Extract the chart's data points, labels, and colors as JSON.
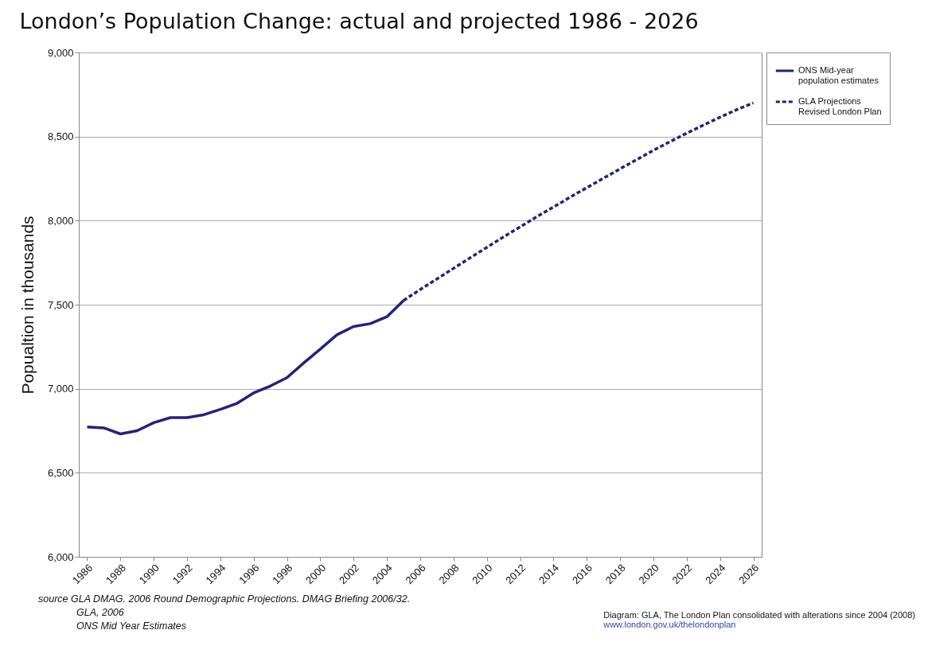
{
  "chart_data": {
    "type": "line",
    "title": "London’s Population Change: actual and projected 1986 - 2026",
    "ylabel": "Popualtion in thousands",
    "xlim": [
      1985.5,
      2026.5
    ],
    "xticks": [
      1986,
      1988,
      1990,
      1992,
      1994,
      1996,
      1998,
      2000,
      2002,
      2004,
      2006,
      2008,
      2010,
      2012,
      2014,
      2016,
      2018,
      2020,
      2022,
      2024,
      2026
    ],
    "ylim": [
      6000,
      9000
    ],
    "yticks": [
      {
        "value": 6000,
        "label": "6,000"
      },
      {
        "value": 6500,
        "label": "6,500"
      },
      {
        "value": 7000,
        "label": "7,000"
      },
      {
        "value": 7500,
        "label": "7,500"
      },
      {
        "value": 8000,
        "label": "8,000"
      },
      {
        "value": 8500,
        "label": "8,500"
      },
      {
        "value": 9000,
        "label": "9,000"
      }
    ],
    "grid": "y",
    "legend": "right",
    "series": [
      {
        "name": "ONS Mid-year population estimates",
        "color": "#23237a",
        "type": "line",
        "line_style": "solid",
        "x": [
          1986,
          1987,
          1988,
          1989,
          1990,
          1991,
          1992,
          1993,
          1994,
          1995,
          1996,
          1997,
          1998,
          1999,
          2000,
          2001,
          2002,
          2003,
          2004,
          2005
        ],
        "values": [
          6773,
          6767,
          6731,
          6750,
          6798,
          6828,
          6828,
          6845,
          6877,
          6913,
          6975,
          7016,
          7066,
          7153,
          7236,
          7321,
          7370,
          7387,
          7428,
          7525
        ]
      },
      {
        "name": "GLA Projections Revised London Plan",
        "color": "#23237a",
        "type": "line",
        "line_style": "dashed",
        "x": [
          2005,
          2006,
          2007,
          2008,
          2009,
          2010,
          2011,
          2012,
          2013,
          2014,
          2015,
          2016,
          2017,
          2018,
          2019,
          2020,
          2021,
          2022,
          2023,
          2024,
          2025,
          2026
        ],
        "values": [
          7525,
          7590,
          7653,
          7716,
          7779,
          7841,
          7903,
          7963,
          8023,
          8081,
          8139,
          8196,
          8252,
          8308,
          8363,
          8418,
          8470,
          8520,
          8568,
          8615,
          8660,
          8700
        ]
      }
    ],
    "annotations": [
      "source  GLA DMAG. 2006 Round Demographic Projections. DMAG Briefing 2006/32.",
      "GLA, 2006",
      "ONS Mid Year Estimates",
      "Diagram:  GLA, The London Plan consolidated with alterations since 2004 (2008)",
      "www.london.gov.uk/thelondonplan"
    ]
  }
}
